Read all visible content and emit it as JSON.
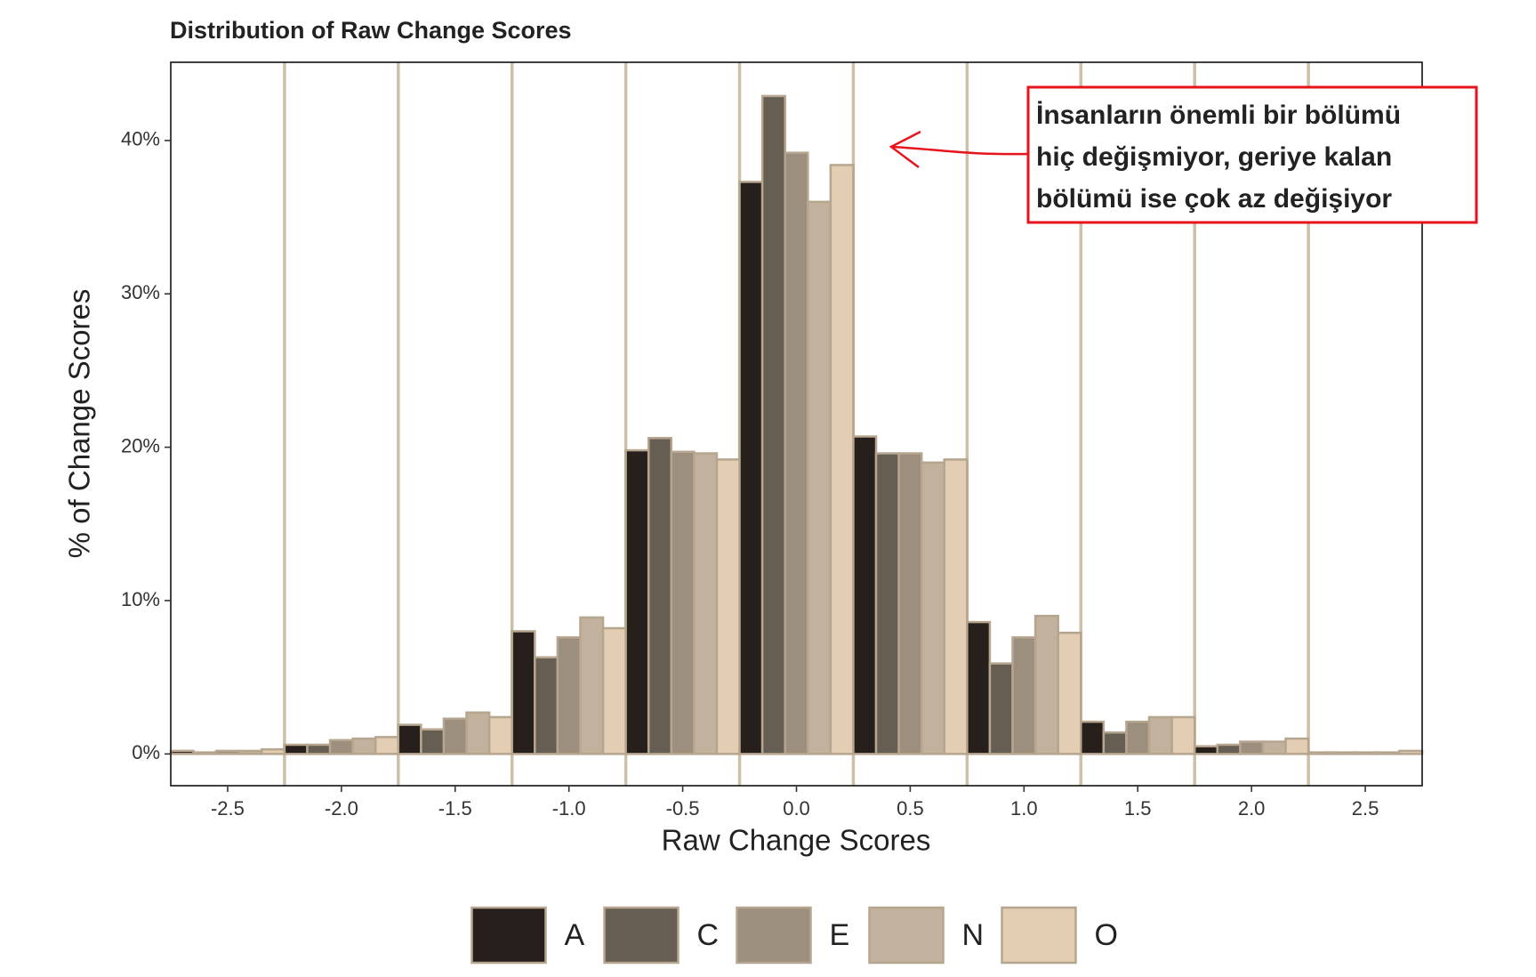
{
  "chart_data": {
    "type": "bar",
    "title": "Distribution of Raw Change Scores",
    "xlabel": "Raw Change Scores",
    "ylabel": "% of Change Scores",
    "x": [
      -2.5,
      -2.0,
      -1.5,
      -1.0,
      -0.5,
      0.0,
      0.5,
      1.0,
      1.5,
      2.0,
      2.5
    ],
    "series": [
      {
        "name": "A",
        "color": "#261f1b",
        "values": [
          0.2,
          0.6,
          1.9,
          8.0,
          19.8,
          37.3,
          20.7,
          8.6,
          2.1,
          0.5,
          0.1
        ]
      },
      {
        "name": "C",
        "color": "#665e53",
        "values": [
          0.1,
          0.6,
          1.6,
          6.3,
          20.6,
          42.9,
          19.6,
          5.9,
          1.4,
          0.6,
          0.1
        ]
      },
      {
        "name": "E",
        "color": "#9c8f7e",
        "values": [
          0.2,
          0.9,
          2.3,
          7.6,
          19.7,
          39.2,
          19.6,
          7.6,
          2.1,
          0.8,
          0.1
        ]
      },
      {
        "name": "N",
        "color": "#c2b19c",
        "values": [
          0.2,
          1.0,
          2.7,
          8.9,
          19.6,
          36.0,
          19.0,
          9.0,
          2.4,
          0.8,
          0.1
        ]
      },
      {
        "name": "O",
        "color": "#e3cdb3",
        "values": [
          0.3,
          1.1,
          2.4,
          8.2,
          19.2,
          38.4,
          19.2,
          7.9,
          2.4,
          1.0,
          0.2
        ]
      }
    ],
    "xlim": [
      -2.75,
      2.75
    ],
    "ylim": [
      -2.07,
      45.1
    ],
    "xticks": [
      -2.5,
      {
        "value": -2.0,
        "label": "-2.0"
      },
      -1.5,
      {
        "value": -1.0,
        "label": "-1.0"
      },
      -0.5,
      {
        "value": 0.0,
        "label": "0.0"
      },
      0.5,
      {
        "value": 1.0,
        "label": "1.0"
      },
      1.5,
      {
        "value": 2.0,
        "label": "2.0"
      },
      2.5
    ],
    "yticks": [
      {
        "value": 0,
        "label": "0%"
      },
      {
        "value": 10,
        "label": "10%"
      },
      {
        "value": 20,
        "label": "20%"
      },
      {
        "value": 30,
        "label": "30%"
      },
      {
        "value": 40,
        "label": "40%"
      }
    ],
    "legend": "bottom",
    "annotation": [
      "İnsanların önemli bir bölümü",
      "hiç değişmiyor, geriye kalan",
      "bölümü ise çok az değişiyor"
    ]
  }
}
